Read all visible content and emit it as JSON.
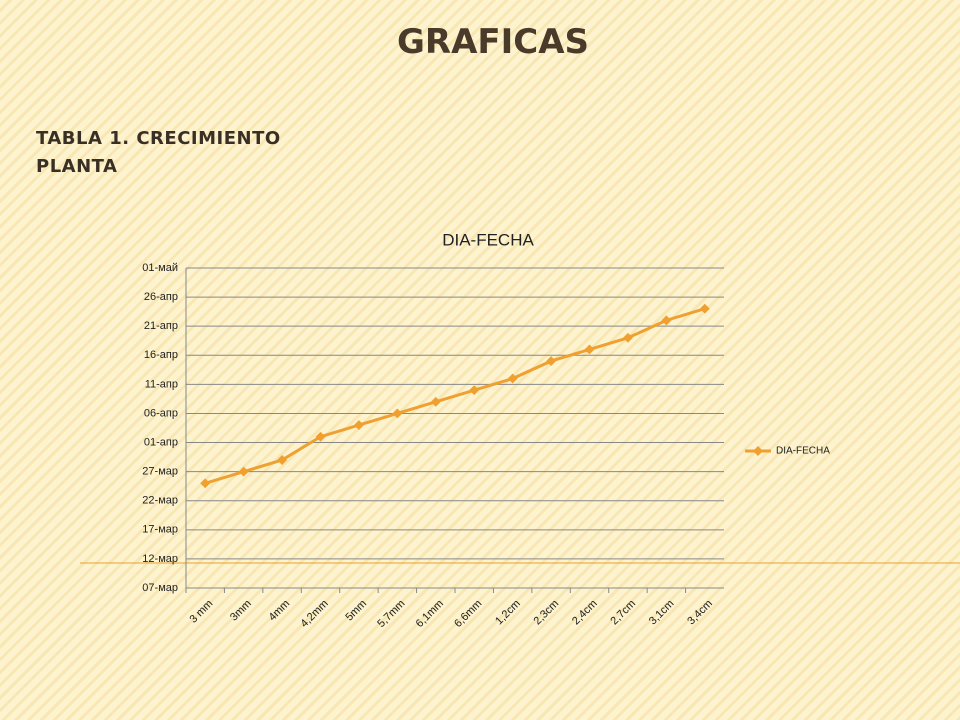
{
  "header": {
    "title": "GRAFICAS",
    "subtitle": "TABLA 1. CRECIMIENTO PLANTA"
  },
  "chart_data": {
    "type": "line",
    "title": "DIA-FECHA",
    "categories": [
      "3 mm",
      "3mm",
      "4mm",
      "4,2mm",
      "5mm",
      "5,7mm",
      "6,1mm",
      "6,6mm",
      "1,2cm",
      "2,3cm",
      "2,4cm",
      "2,7cm",
      "3,1cm",
      "3,4cm"
    ],
    "series": [
      {
        "name": "DIA-FECHA",
        "color": "#f0a030",
        "values": [
          84,
          86,
          88,
          92,
          94,
          96,
          98,
          100,
          102,
          105,
          107,
          109,
          112,
          114
        ]
      }
    ],
    "ylim": [
      66,
      121
    ],
    "yticks": [
      {
        "value": 66,
        "label": "07-мар"
      },
      {
        "value": 71,
        "label": "12-мар"
      },
      {
        "value": 76,
        "label": "17-мар"
      },
      {
        "value": 81,
        "label": "22-мар"
      },
      {
        "value": 86,
        "label": "27-мар"
      },
      {
        "value": 91,
        "label": "01-апр"
      },
      {
        "value": 96,
        "label": "06-апр"
      },
      {
        "value": 101,
        "label": "11-апр"
      },
      {
        "value": 106,
        "label": "16-апр"
      },
      {
        "value": 111,
        "label": "21-апр"
      },
      {
        "value": 116,
        "label": "26-апр"
      },
      {
        "value": 121,
        "label": "01-май"
      }
    ],
    "grid": true,
    "legend": "right"
  }
}
